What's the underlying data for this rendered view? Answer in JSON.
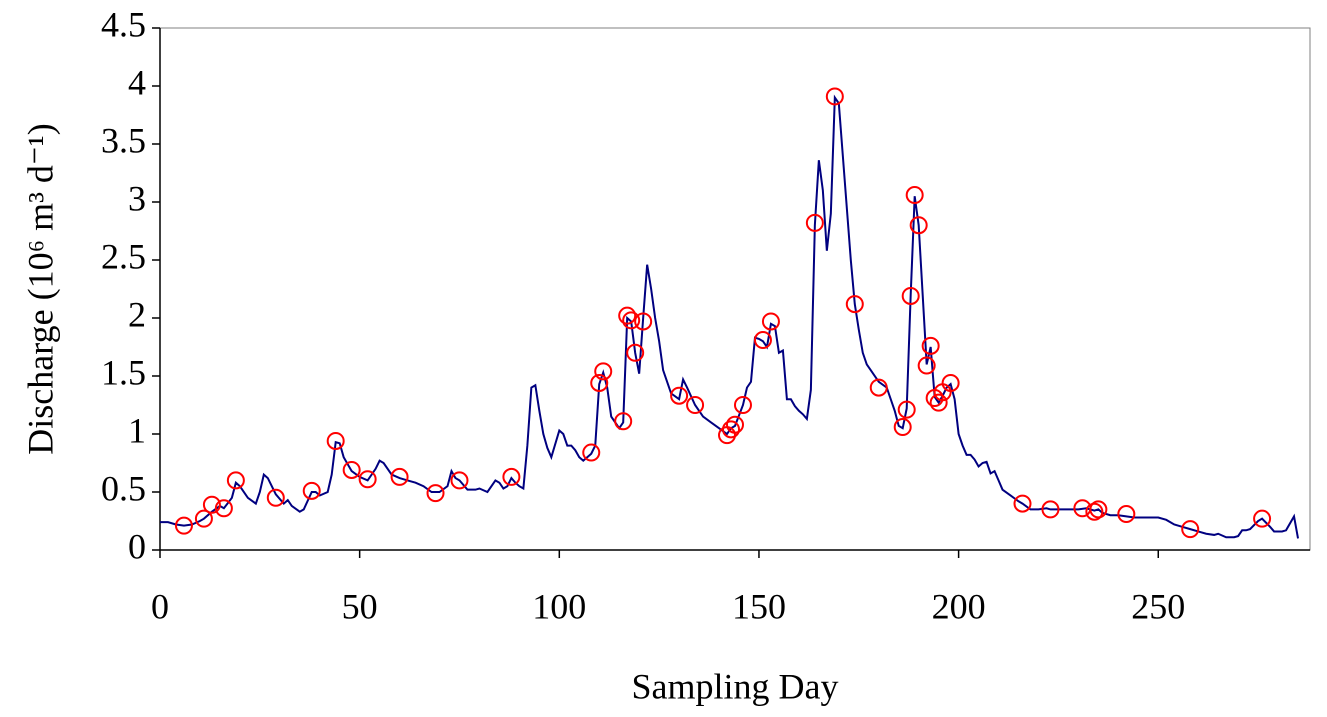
{
  "chart_data": {
    "type": "line",
    "xlabel": "Sampling Day",
    "ylabel": "Discharge (10⁶ m³ d⁻¹)",
    "xlim": [
      0,
      288
    ],
    "ylim": [
      0,
      4.5
    ],
    "xticks": [
      0,
      50,
      100,
      150,
      200,
      250
    ],
    "yticks": [
      0,
      0.5,
      1,
      1.5,
      2,
      2.5,
      3,
      3.5,
      4,
      4.5
    ],
    "grid": false,
    "series": [
      {
        "type": "line",
        "color": "#000080",
        "x": [
          0,
          2,
          4,
          6,
          8,
          10,
          11,
          13,
          15,
          16,
          18,
          19,
          20,
          22,
          24,
          25,
          26,
          27,
          29,
          31,
          32,
          33,
          35,
          36,
          38,
          39,
          40,
          42,
          43,
          44,
          45,
          46,
          48,
          50,
          52,
          54,
          55,
          56,
          58,
          60,
          62,
          64,
          66,
          68,
          70,
          72,
          73,
          74,
          75,
          77,
          79,
          80,
          82,
          84,
          85,
          86,
          87,
          88,
          89,
          90,
          91,
          92,
          93,
          94,
          95,
          96,
          97,
          98,
          100,
          101,
          102,
          103,
          104,
          105,
          106,
          108,
          109,
          110,
          111,
          112,
          113,
          115,
          116,
          117,
          118,
          119,
          120,
          121,
          122,
          123,
          124,
          125,
          126,
          128,
          130,
          131,
          132,
          134,
          136,
          138,
          140,
          142,
          143,
          144,
          146,
          147,
          148,
          149,
          150,
          151,
          152,
          153,
          154,
          155,
          156,
          157,
          158,
          159,
          160,
          161,
          162,
          163,
          164,
          165,
          166,
          167,
          168,
          169,
          170,
          171,
          172,
          173,
          174,
          175,
          176,
          177,
          178,
          180,
          182,
          183,
          184,
          185,
          186,
          187,
          188,
          189,
          190,
          191,
          192,
          193,
          194,
          195,
          196,
          197,
          198,
          199,
          200,
          201,
          202,
          203,
          204,
          205,
          206,
          207,
          208,
          209,
          210,
          211,
          213,
          215,
          216,
          218,
          220,
          222,
          223,
          226,
          230,
          232,
          234,
          235,
          236,
          238,
          240,
          242,
          244,
          250,
          252,
          254,
          256,
          258,
          260,
          262,
          264,
          265,
          267,
          269,
          270,
          271,
          272,
          273,
          275,
          276,
          278,
          279,
          281,
          282,
          284,
          285
        ],
        "values": [
          0.24,
          0.24,
          0.22,
          0.21,
          0.22,
          0.25,
          0.27,
          0.33,
          0.38,
          0.36,
          0.45,
          0.58,
          0.55,
          0.45,
          0.4,
          0.5,
          0.65,
          0.62,
          0.48,
          0.4,
          0.43,
          0.38,
          0.33,
          0.35,
          0.5,
          0.5,
          0.47,
          0.5,
          0.65,
          0.93,
          0.92,
          0.8,
          0.68,
          0.63,
          0.6,
          0.7,
          0.77,
          0.75,
          0.65,
          0.62,
          0.6,
          0.58,
          0.55,
          0.5,
          0.5,
          0.55,
          0.68,
          0.62,
          0.6,
          0.52,
          0.52,
          0.53,
          0.5,
          0.6,
          0.58,
          0.53,
          0.55,
          0.62,
          0.58,
          0.55,
          0.53,
          0.9,
          1.4,
          1.42,
          1.2,
          1.0,
          0.88,
          0.8,
          1.03,
          1.0,
          0.9,
          0.9,
          0.86,
          0.8,
          0.77,
          0.83,
          0.9,
          1.43,
          1.53,
          1.4,
          1.15,
          1.05,
          1.1,
          2.0,
          1.97,
          1.7,
          1.52,
          2.0,
          2.46,
          2.25,
          2.0,
          1.8,
          1.55,
          1.35,
          1.3,
          1.47,
          1.4,
          1.25,
          1.15,
          1.1,
          1.05,
          1.0,
          1.05,
          1.07,
          1.25,
          1.4,
          1.45,
          1.83,
          1.82,
          1.8,
          1.75,
          1.95,
          1.93,
          1.7,
          1.72,
          1.3,
          1.3,
          1.24,
          1.2,
          1.17,
          1.13,
          1.38,
          2.8,
          3.36,
          3.1,
          2.58,
          2.9,
          3.9,
          3.85,
          3.4,
          2.95,
          2.5,
          2.12,
          1.9,
          1.7,
          1.6,
          1.55,
          1.45,
          1.4,
          1.3,
          1.2,
          1.07,
          1.05,
          1.22,
          2.2,
          3.05,
          2.8,
          2.2,
          1.6,
          1.75,
          1.32,
          1.27,
          1.33,
          1.4,
          1.43,
          1.3,
          1.0,
          0.9,
          0.82,
          0.82,
          0.78,
          0.72,
          0.75,
          0.76,
          0.66,
          0.68,
          0.6,
          0.52,
          0.47,
          0.42,
          0.4,
          0.35,
          0.35,
          0.36,
          0.35,
          0.35,
          0.35,
          0.36,
          0.34,
          0.35,
          0.32,
          0.3,
          0.3,
          0.29,
          0.28,
          0.28,
          0.26,
          0.22,
          0.2,
          0.18,
          0.16,
          0.14,
          0.13,
          0.14,
          0.11,
          0.11,
          0.12,
          0.17,
          0.17,
          0.18,
          0.25,
          0.27,
          0.2,
          0.16,
          0.16,
          0.17,
          0.29,
          0.1
        ]
      },
      {
        "type": "scatter",
        "color": "#ff0000",
        "x": [
          6,
          11,
          13,
          16,
          19,
          29,
          38,
          44,
          48,
          52,
          60,
          69,
          75,
          88,
          108,
          110,
          111,
          116,
          117,
          118,
          119,
          121,
          130,
          134,
          142,
          143,
          144,
          146,
          151,
          153,
          164,
          169,
          174,
          180,
          186,
          187,
          188,
          189,
          190,
          192,
          193,
          194,
          195,
          196,
          198,
          216,
          223,
          231,
          234,
          235,
          242,
          258,
          276
        ],
        "values": [
          0.21,
          0.27,
          0.39,
          0.36,
          0.6,
          0.45,
          0.51,
          0.94,
          0.69,
          0.61,
          0.63,
          0.49,
          0.6,
          0.63,
          0.84,
          1.44,
          1.54,
          1.11,
          2.02,
          1.98,
          1.7,
          1.97,
          1.33,
          1.25,
          0.99,
          1.04,
          1.08,
          1.25,
          1.81,
          1.97,
          2.82,
          3.91,
          2.12,
          1.4,
          1.06,
          1.21,
          2.19,
          3.06,
          2.8,
          1.59,
          1.76,
          1.31,
          1.27,
          1.36,
          1.44,
          0.4,
          0.35,
          0.36,
          0.33,
          0.35,
          0.31,
          0.18,
          0.27
        ]
      }
    ]
  }
}
